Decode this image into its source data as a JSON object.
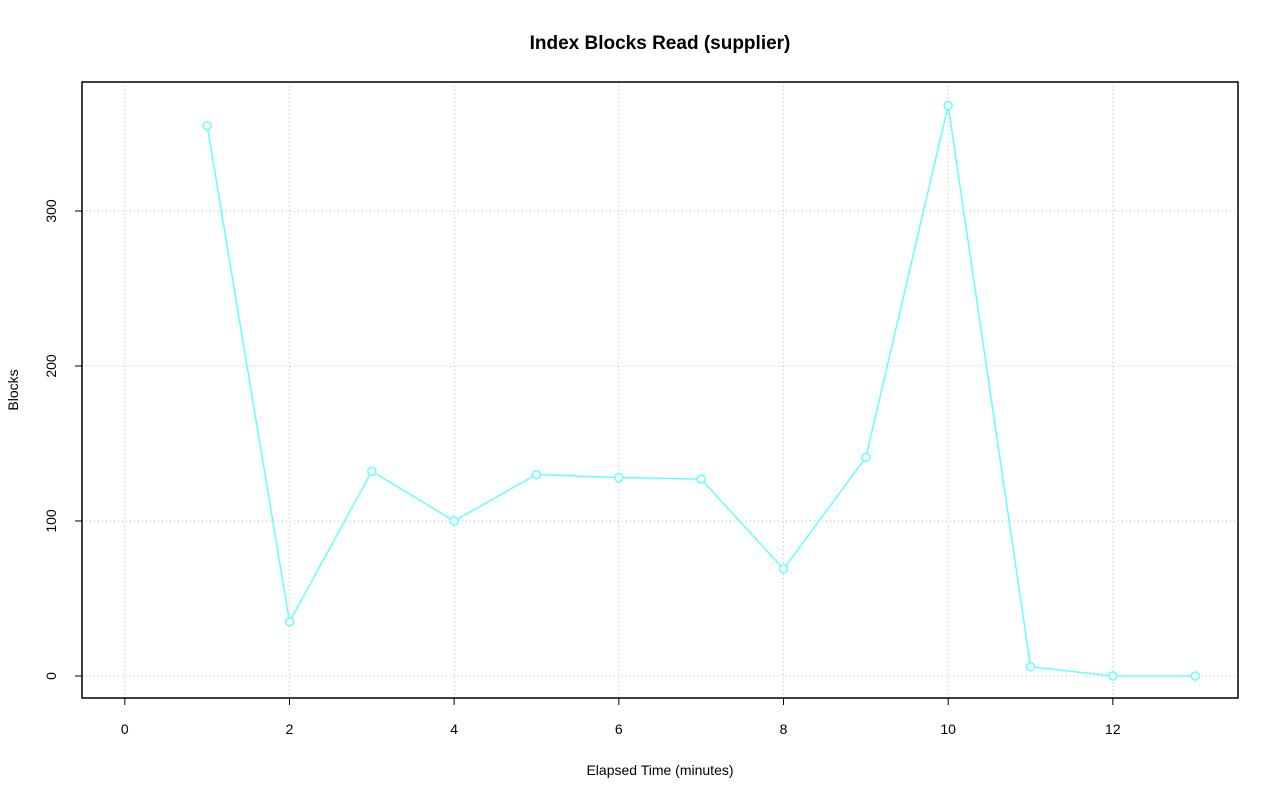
{
  "chart_data": {
    "type": "line",
    "title": "Index Blocks Read (supplier)",
    "x_label": "Elapsed Time (minutes)",
    "y_label": "Blocks",
    "x": [
      1,
      2,
      3,
      4,
      5,
      6,
      7,
      8,
      9,
      10,
      11,
      12,
      13
    ],
    "series": [
      {
        "name": "supplier",
        "color": "#66ffff",
        "values": [
          355,
          35,
          132,
          100,
          130,
          128,
          127,
          69,
          141,
          368,
          6,
          0,
          0
        ]
      }
    ],
    "xlim": [
      -0.52,
      13.52
    ],
    "ylim": [
      -14.2,
      383.2
    ],
    "xticks": [
      0,
      2,
      4,
      6,
      8,
      10,
      12
    ],
    "yticks": [
      0,
      100,
      200,
      300
    ],
    "grid": true
  }
}
